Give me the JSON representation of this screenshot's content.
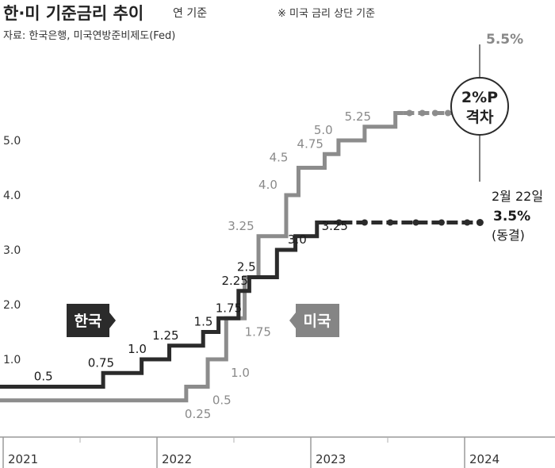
{
  "chart_data": {
    "type": "line",
    "title": "한·미 기준금리 추이",
    "subtitle": "연 기준",
    "source": "자료: 한국은행, 미국연방준비제도(Fed)",
    "note": "※ 미국 금리 상단 기준",
    "ylim": [
      0,
      5.75
    ],
    "yticks": [
      "1.0",
      "2.0",
      "3.0",
      "4.0",
      "5.0"
    ],
    "x_ticks": [
      "2021",
      "2022",
      "2023",
      "2024"
    ],
    "grid": false,
    "series": [
      {
        "name": "한국",
        "color": "#2b2b2b",
        "steps": [
          {
            "x": 2020.9,
            "y": 0.5
          },
          {
            "x": 2021.65,
            "y": 0.75
          },
          {
            "x": 2021.9,
            "y": 1.0
          },
          {
            "x": 2022.08,
            "y": 1.25
          },
          {
            "x": 2022.3,
            "y": 1.5
          },
          {
            "x": 2022.4,
            "y": 1.75
          },
          {
            "x": 2022.53,
            "y": 2.25
          },
          {
            "x": 2022.6,
            "y": 2.5
          },
          {
            "x": 2022.78,
            "y": 3.0
          },
          {
            "x": 2022.9,
            "y": 3.25
          },
          {
            "x": 2023.04,
            "y": 3.5
          }
        ],
        "end_x": 2024.1,
        "dotted_from": 2023.1,
        "point_labels": [
          {
            "text": "0.5",
            "x": 2021.2,
            "y": 0.5
          },
          {
            "text": "0.75",
            "x": 2021.55,
            "y": 0.75
          },
          {
            "text": "1.0",
            "x": 2021.81,
            "y": 1.0
          },
          {
            "text": "1.25",
            "x": 2021.97,
            "y": 1.25
          },
          {
            "text": "1.5",
            "x": 2022.24,
            "y": 1.5
          },
          {
            "text": "1.75",
            "x": 2022.38,
            "y": 1.75
          },
          {
            "text": "2.25",
            "x": 2022.42,
            "y": 2.25
          },
          {
            "text": "2.5",
            "x": 2022.52,
            "y": 2.5
          },
          {
            "text": "3.0",
            "x": 2022.85,
            "y": 3.0
          },
          {
            "text": "3.25",
            "x": 2023.07,
            "y": 3.25
          }
        ],
        "end_labels": [
          "2월 22일",
          "3.5%",
          "(동결)"
        ]
      },
      {
        "name": "미국",
        "color": "#8c8c8c",
        "steps": [
          {
            "x": 2020.9,
            "y": 0.25
          },
          {
            "x": 2022.19,
            "y": 0.5
          },
          {
            "x": 2022.33,
            "y": 1.0
          },
          {
            "x": 2022.45,
            "y": 1.75
          },
          {
            "x": 2022.57,
            "y": 2.5
          },
          {
            "x": 2022.66,
            "y": 3.25
          },
          {
            "x": 2022.84,
            "y": 4.0
          },
          {
            "x": 2022.92,
            "y": 4.5
          },
          {
            "x": 2023.09,
            "y": 4.75
          },
          {
            "x": 2023.18,
            "y": 5.0
          },
          {
            "x": 2023.35,
            "y": 5.25
          },
          {
            "x": 2023.55,
            "y": 5.5
          }
        ],
        "end_x": 2024.1,
        "dotted_from": 2023.6,
        "point_labels": [
          {
            "text": "0.25",
            "x": 2022.18,
            "y": 0.25
          },
          {
            "text": "0.5",
            "x": 2022.36,
            "y": 0.5
          },
          {
            "text": "1.0",
            "x": 2022.48,
            "y": 1.0
          },
          {
            "text": "1.75",
            "x": 2022.57,
            "y": 1.75
          },
          {
            "text": "3.25",
            "x": 2022.46,
            "y": 3.25
          },
          {
            "text": "4.0",
            "x": 2022.66,
            "y": 4.0
          },
          {
            "text": "4.5",
            "x": 2022.73,
            "y": 4.5
          },
          {
            "text": "4.75",
            "x": 2022.91,
            "y": 4.75
          },
          {
            "text": "5.0",
            "x": 2023.02,
            "y": 5.0
          },
          {
            "text": "5.25",
            "x": 2023.22,
            "y": 5.25
          }
        ],
        "end_labels": [
          "5.5%"
        ]
      }
    ],
    "annotations": {
      "korea_tag": "한국",
      "us_tag": "미국",
      "gap_line1": "2%P",
      "gap_line2": "격차"
    }
  }
}
